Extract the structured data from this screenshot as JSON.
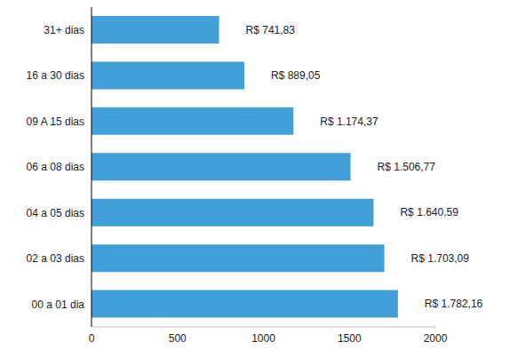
{
  "chart_data": {
    "type": "bar",
    "orientation": "horizontal",
    "categories": [
      "31+ dias",
      "16 a 30 dias",
      "09 A 15 dias",
      "06 a 08 dias",
      "04 a 05 dias",
      "02 a 03 dias",
      "00 a 01 dia"
    ],
    "values": [
      741.83,
      889.05,
      1174.37,
      1506.77,
      1640.59,
      1703.09,
      1782.16
    ],
    "value_labels": [
      "R$ 741,83",
      "R$ 889,05",
      "R$ 1.174,37",
      "R$ 1.506,77",
      "R$ 1.640,59",
      "R$ 1.703,09",
      "R$ 1.782,16"
    ],
    "color": "#42a0d8",
    "xlim": [
      0,
      2000
    ],
    "xticks": [
      0,
      500,
      1000,
      1500,
      2000
    ],
    "grid": false,
    "data_labels": true
  }
}
